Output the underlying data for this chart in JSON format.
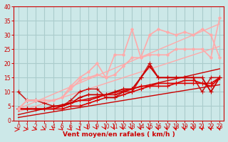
{
  "xlabel": "Vent moyen/en rafales ( km/h )",
  "background_color": "#cce8e8",
  "grid_color": "#aacccc",
  "x": [
    0,
    1,
    2,
    3,
    4,
    5,
    6,
    7,
    8,
    9,
    10,
    11,
    12,
    13,
    14,
    15,
    16,
    17,
    18,
    19,
    20,
    21,
    22,
    23
  ],
  "series": [
    {
      "color": "#cc0000",
      "alpha": 1.0,
      "linewidth": 1.0,
      "marker": null,
      "markersize": 0,
      "y": [
        1,
        1.5,
        2,
        2.5,
        3,
        3.5,
        4,
        4.5,
        5,
        5.5,
        6,
        6.5,
        7,
        7.5,
        8,
        8.5,
        9,
        9.5,
        10,
        10.5,
        11,
        11.5,
        12,
        12.5
      ]
    },
    {
      "color": "#cc0000",
      "alpha": 1.0,
      "linewidth": 1.0,
      "marker": null,
      "markersize": 0,
      "y": [
        2,
        2.7,
        3.4,
        4.1,
        4.8,
        5.5,
        6.2,
        6.9,
        7.6,
        8.3,
        9,
        9.7,
        10.4,
        11.1,
        11.8,
        12.5,
        13.2,
        13.9,
        14.6,
        15.3,
        16,
        16.7,
        17.4,
        18.1
      ]
    },
    {
      "color": "#ffaaaa",
      "alpha": 1.0,
      "linewidth": 1.0,
      "marker": null,
      "markersize": 0,
      "y": [
        3,
        4,
        5,
        6,
        7,
        8,
        9,
        10,
        11,
        12,
        13,
        14,
        15,
        16,
        17,
        18,
        19,
        20,
        21,
        22,
        23,
        24,
        25,
        26
      ]
    },
    {
      "color": "#ffaaaa",
      "alpha": 1.0,
      "linewidth": 1.0,
      "marker": null,
      "markersize": 0,
      "y": [
        4,
        5.3,
        6.6,
        7.9,
        9.2,
        10.5,
        11.8,
        13.1,
        14.4,
        15.7,
        17,
        18.3,
        19.6,
        20.9,
        22.2,
        23.5,
        24.8,
        26.1,
        27.4,
        28.7,
        30,
        31.3,
        32.6,
        33.9
      ]
    },
    {
      "color": "#dd0000",
      "alpha": 1.0,
      "linewidth": 1.2,
      "marker": "+",
      "markersize": 4,
      "y": [
        4,
        4,
        4,
        4,
        4,
        4,
        5,
        5,
        6,
        7,
        8,
        8,
        9,
        10,
        11,
        12,
        12,
        12,
        13,
        13,
        13,
        13,
        13,
        15
      ]
    },
    {
      "color": "#dd0000",
      "alpha": 1.0,
      "linewidth": 1.2,
      "marker": "+",
      "markersize": 4,
      "y": [
        4,
        4,
        4,
        4,
        4,
        5,
        6,
        7,
        7,
        8,
        9,
        9,
        10,
        11,
        12,
        12,
        13,
        13,
        13,
        14,
        14,
        13,
        12,
        15
      ]
    },
    {
      "color": "#cc0000",
      "alpha": 1.0,
      "linewidth": 1.3,
      "marker": "+",
      "markersize": 4,
      "y": [
        4,
        4,
        4,
        4,
        5,
        5,
        6,
        8,
        9,
        9,
        9,
        10,
        11,
        11,
        15,
        19,
        15,
        15,
        15,
        15,
        15,
        15,
        10,
        15
      ]
    },
    {
      "color": "#cc0000",
      "alpha": 0.85,
      "linewidth": 1.2,
      "marker": "+",
      "markersize": 4,
      "y": [
        10,
        7,
        7,
        6,
        5,
        5,
        7,
        10,
        11,
        11,
        8,
        8,
        10,
        10,
        15,
        20,
        15,
        15,
        15,
        15,
        15,
        10,
        15,
        15
      ]
    },
    {
      "color": "#ffaaaa",
      "alpha": 1.0,
      "linewidth": 1.2,
      "marker": "D",
      "markersize": 2,
      "y": [
        4,
        7,
        7,
        7,
        7,
        8,
        11,
        14,
        15,
        16,
        15,
        16,
        19,
        22,
        22,
        23,
        23,
        23,
        25,
        25,
        25,
        25,
        22,
        36
      ]
    },
    {
      "color": "#ffaaaa",
      "alpha": 1.0,
      "linewidth": 1.2,
      "marker": "D",
      "markersize": 2,
      "y": [
        4,
        7,
        7,
        7,
        7,
        8,
        12,
        15,
        17,
        20,
        15,
        23,
        23,
        32,
        22,
        30,
        32,
        31,
        30,
        31,
        30,
        32,
        30,
        22
      ]
    }
  ],
  "ylim": [
    0,
    40
  ],
  "xlim": [
    -0.5,
    23.5
  ],
  "yticks": [
    0,
    5,
    10,
    15,
    20,
    25,
    30,
    35,
    40
  ],
  "xticks": [
    0,
    1,
    2,
    3,
    4,
    5,
    6,
    7,
    8,
    9,
    10,
    11,
    12,
    13,
    14,
    15,
    16,
    17,
    18,
    19,
    20,
    21,
    22,
    23
  ],
  "arrow_color": "#dd0000",
  "spine_color": "#cc0000",
  "tick_color": "#cc0000",
  "xlabel_color": "#cc0000",
  "xlabel_fontsize": 6.5,
  "tick_fontsize": 5.5
}
